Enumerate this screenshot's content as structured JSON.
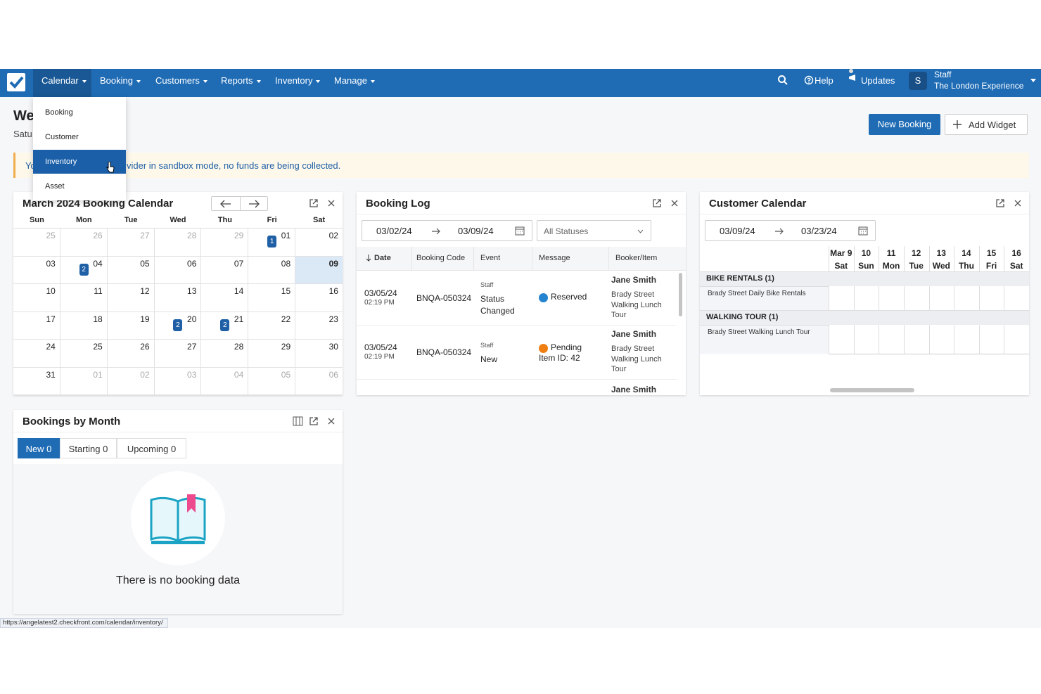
{
  "nav": {
    "items": [
      "Calendar",
      "Booking",
      "Customers",
      "Reports",
      "Inventory",
      "Manage"
    ],
    "help": "Help",
    "updates": "Updates",
    "avatar": "S",
    "user": "Staff",
    "company": "The London Experience"
  },
  "dropdown": {
    "items": [
      "Booking",
      "Customer",
      "Inventory",
      "Asset"
    ]
  },
  "header": {
    "title": "We",
    "subtitle": "Satu",
    "buttons": [
      "New Booking",
      "Add Widget"
    ]
  },
  "alert": {
    "left": "Yo",
    "right": "vider in sandbox mode, no funds are being collected."
  },
  "calendar": {
    "title": "March 2024 Booking Calendar",
    "weekdays": [
      "Sun",
      "Mon",
      "Tue",
      "Wed",
      "Thu",
      "Fri",
      "Sat"
    ],
    "weeks": [
      [
        "25",
        "26",
        "27",
        "28",
        "29",
        {
          "date": "01",
          "badge": 1
        },
        "02"
      ],
      [
        "03",
        {
          "date": "04",
          "badge": 2
        },
        "05",
        "06",
        "07",
        "08",
        "09"
      ],
      [
        "10",
        "11",
        "12",
        "13",
        "14",
        "15",
        "16"
      ],
      [
        "17",
        "18",
        "19",
        {
          "date": "20",
          "badge": 2
        },
        {
          "date": "21",
          "badge": 2
        },
        "22",
        "23"
      ],
      [
        "24",
        "25",
        "26",
        "27",
        "28",
        "29",
        "30"
      ],
      [
        "31",
        "01",
        "02",
        "03",
        "04",
        "05",
        "06"
      ]
    ]
  },
  "booking_log": {
    "title": "Booking Log",
    "from": "03/02/24",
    "to": "03/09/24",
    "status": "All Statuses",
    "columns": [
      "Date",
      "Booking Code",
      "Event",
      "Message",
      "Booker/Item"
    ],
    "rows": [
      {
        "date": "03/05/24",
        "time": "02:19 PM",
        "code": "BNQA-050324",
        "actor": "Staff",
        "event": "Status Changed",
        "message": "Reserved",
        "booker": "Jane Smith",
        "item": "Brady Street Walking Lunch Tour"
      },
      {
        "date": "03/05/24",
        "time": "02:19 PM",
        "code": "BNQA-050324",
        "actor": "Staff",
        "event": "New",
        "message": "Pending",
        "detail": "Item ID: 42",
        "booker": "Jane Smith",
        "item": "Brady Street Walking Lunch Tour"
      },
      {
        "booker": "Jane Smith"
      }
    ]
  },
  "customer_calendar": {
    "title": "Customer Calendar",
    "from": "03/09/24",
    "to": "03/23/24",
    "days": [
      {
        "date": "Mar 9",
        "weekday": "Sat"
      },
      {
        "date": "10",
        "weekday": "Sun"
      },
      {
        "date": "11",
        "weekday": "Mon"
      },
      {
        "date": "12",
        "weekday": "Tue"
      },
      {
        "date": "13",
        "weekday": "Wed"
      },
      {
        "date": "14",
        "weekday": "Thu"
      },
      {
        "date": "15",
        "weekday": "Fri"
      },
      {
        "date": "16",
        "weekday": "Sat"
      }
    ],
    "groups": [
      {
        "name": "BIKE RENTALS (1)",
        "items": [
          "Brady Street Daily Bike Rentals"
        ]
      },
      {
        "name": "WALKING TOUR (1)",
        "items": [
          "Brady Street Walking Lunch Tour"
        ]
      }
    ]
  },
  "bookings_by_month": {
    "title": "Bookings by Month",
    "tabs": [
      "New 0",
      "Starting 0",
      "Upcoming 0"
    ],
    "empty": "There is no booking data"
  },
  "status_url": "https://angelatest2.checkfront.com/calendar/inventory/"
}
